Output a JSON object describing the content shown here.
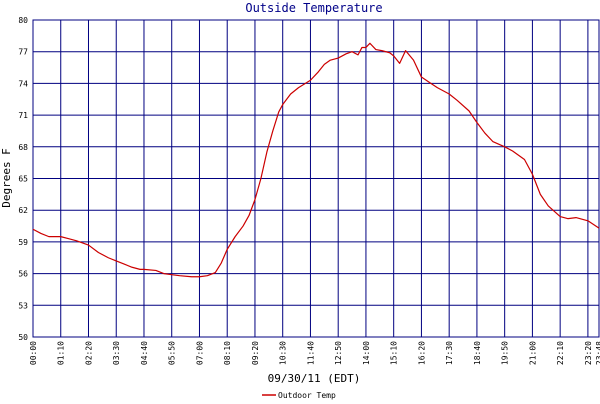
{
  "chart_data": {
    "type": "line",
    "title": "Outside Temperature",
    "xlabel": "09/30/11 (EDT)",
    "ylabel": "Degrees F",
    "ylim": [
      50,
      80
    ],
    "yticks": [
      "80",
      "77",
      "74",
      "71",
      "68",
      "65",
      "62",
      "59",
      "56",
      "53",
      "50"
    ],
    "xlim": [
      "00:00",
      "23:48"
    ],
    "xticks": [
      "00:00",
      "01:10",
      "02:20",
      "03:30",
      "04:40",
      "05:50",
      "07:00",
      "08:10",
      "09:20",
      "10:30",
      "11:40",
      "12:50",
      "14:00",
      "15:10",
      "16:20",
      "17:30",
      "18:40",
      "19:50",
      "21:00",
      "22:10",
      "23:20",
      "23:48"
    ],
    "grid": true,
    "legend_position": "bottom-center",
    "series": [
      {
        "name": "Outdoor Temp",
        "color": "#cc0000",
        "points": [
          [
            "00:00",
            60.2
          ],
          [
            "00:20",
            59.8
          ],
          [
            "00:40",
            59.5
          ],
          [
            "01:10",
            59.5
          ],
          [
            "01:30",
            59.3
          ],
          [
            "01:50",
            59.1
          ],
          [
            "02:20",
            58.7
          ],
          [
            "02:45",
            58.0
          ],
          [
            "03:10",
            57.5
          ],
          [
            "03:30",
            57.2
          ],
          [
            "03:50",
            56.9
          ],
          [
            "04:10",
            56.6
          ],
          [
            "04:30",
            56.4
          ],
          [
            "04:40",
            56.4
          ],
          [
            "05:10",
            56.3
          ],
          [
            "05:30",
            56.0
          ],
          [
            "05:50",
            55.9
          ],
          [
            "06:10",
            55.8
          ],
          [
            "06:40",
            55.7
          ],
          [
            "07:00",
            55.7
          ],
          [
            "07:20",
            55.8
          ],
          [
            "07:40",
            56.1
          ],
          [
            "07:55",
            57.0
          ],
          [
            "08:10",
            58.3
          ],
          [
            "08:30",
            59.5
          ],
          [
            "08:50",
            60.5
          ],
          [
            "09:05",
            61.5
          ],
          [
            "09:20",
            63.0
          ],
          [
            "09:35",
            65.0
          ],
          [
            "09:50",
            67.5
          ],
          [
            "10:05",
            69.5
          ],
          [
            "10:20",
            71.3
          ],
          [
            "10:30",
            72.0
          ],
          [
            "10:50",
            73.0
          ],
          [
            "11:10",
            73.6
          ],
          [
            "11:40",
            74.3
          ],
          [
            "12:00",
            75.1
          ],
          [
            "12:15",
            75.8
          ],
          [
            "12:30",
            76.2
          ],
          [
            "12:50",
            76.4
          ],
          [
            "13:10",
            76.8
          ],
          [
            "13:25",
            77.0
          ],
          [
            "13:40",
            76.7
          ],
          [
            "13:50",
            77.4
          ],
          [
            "14:00",
            77.4
          ],
          [
            "14:10",
            77.8
          ],
          [
            "14:25",
            77.2
          ],
          [
            "14:40",
            77.1
          ],
          [
            "15:00",
            76.9
          ],
          [
            "15:10",
            76.6
          ],
          [
            "15:25",
            75.9
          ],
          [
            "15:40",
            77.1
          ],
          [
            "16:00",
            76.2
          ],
          [
            "16:20",
            74.6
          ],
          [
            "16:40",
            74.1
          ],
          [
            "17:00",
            73.6
          ],
          [
            "17:30",
            73.0
          ],
          [
            "17:50",
            72.4
          ],
          [
            "18:20",
            71.4
          ],
          [
            "18:40",
            70.3
          ],
          [
            "19:00",
            69.3
          ],
          [
            "19:20",
            68.5
          ],
          [
            "19:50",
            68.0
          ],
          [
            "20:10",
            67.6
          ],
          [
            "20:40",
            66.8
          ],
          [
            "21:00",
            65.4
          ],
          [
            "21:20",
            63.5
          ],
          [
            "21:40",
            62.4
          ],
          [
            "22:10",
            61.4
          ],
          [
            "22:30",
            61.2
          ],
          [
            "22:50",
            61.3
          ],
          [
            "23:20",
            61.0
          ],
          [
            "23:48",
            60.3
          ]
        ]
      }
    ]
  }
}
